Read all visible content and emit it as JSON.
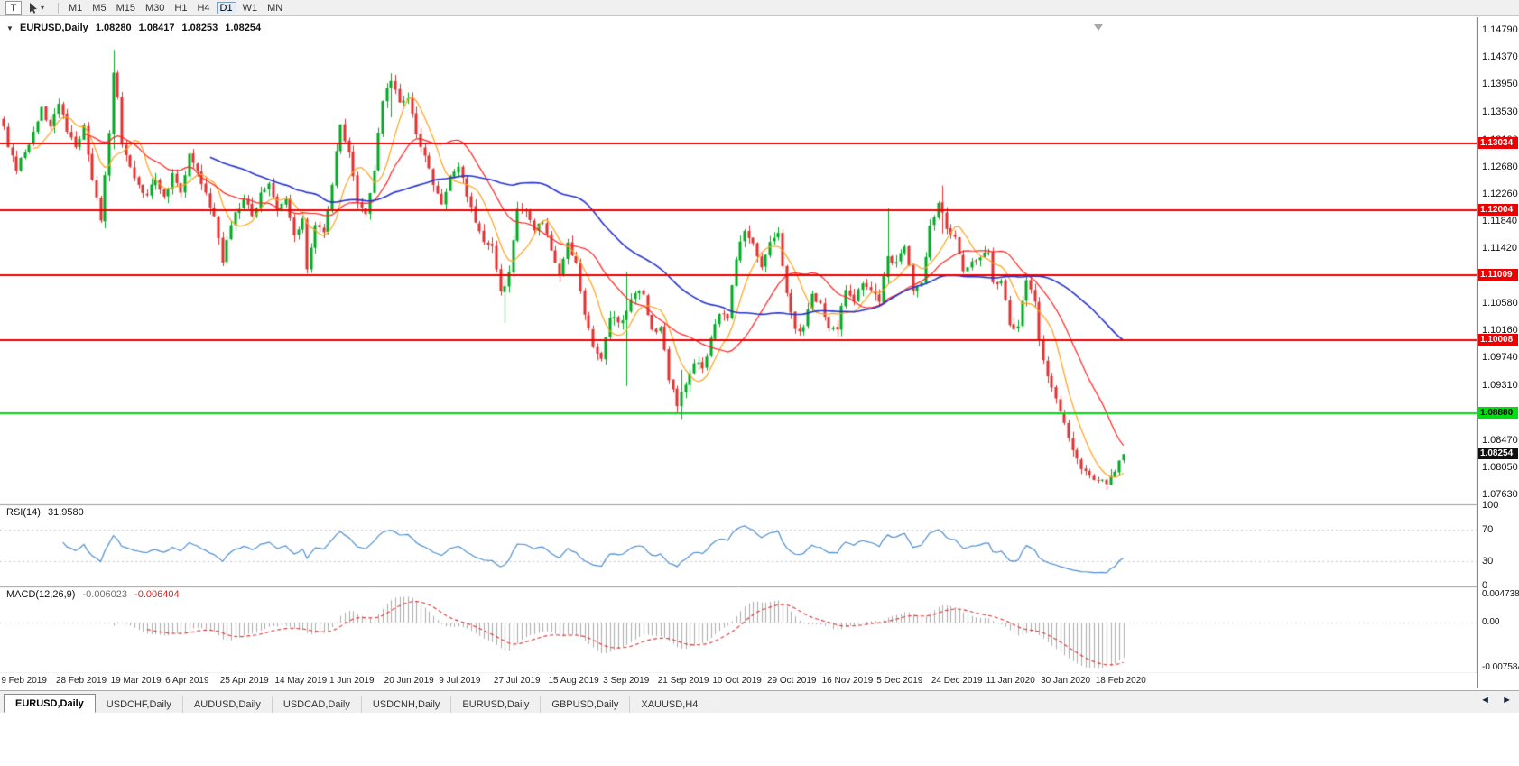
{
  "toolbar": {
    "text_tool_label": "T",
    "timeframes": [
      "M1",
      "M5",
      "M15",
      "M30",
      "H1",
      "H4",
      "D1",
      "W1",
      "MN"
    ],
    "active_timeframe": "D1"
  },
  "icons": {
    "collapse": "▼",
    "dropdown": "▾",
    "tab_scroll_left": "◄",
    "tab_scroll_right": "►"
  },
  "chart": {
    "symbol_info": {
      "symbol": "EURUSD,Daily",
      "open": "1.08280",
      "high": "1.08417",
      "low": "1.08253",
      "close": "1.08254"
    },
    "current_price_flag": {
      "label": "1.08254",
      "price": 1.08254,
      "bg": "#101010",
      "text_color": "#ffffff"
    },
    "rsi_panel": {
      "name": "RSI(14)",
      "value": "31.9580",
      "levels": [
        "100",
        "70",
        "30",
        "0"
      ],
      "line_color": "#4f8fd0"
    },
    "macd_panel": {
      "name": "MACD(12,26,9)",
      "value": "-0.006023",
      "signal_value": "-0.006404",
      "hist_color": "#ababab",
      "signal_color": "#e03131"
    }
  },
  "tabs": [
    {
      "label": "EURUSD,Daily",
      "active": true
    },
    {
      "label": "USDCHF,Daily",
      "active": false
    },
    {
      "label": "AUDUSD,Daily",
      "active": false
    },
    {
      "label": "USDCAD,Daily",
      "active": false
    },
    {
      "label": "USDCNH,Daily",
      "active": false
    },
    {
      "label": "EURUSD,Daily",
      "active": false
    },
    {
      "label": "GBPUSD,Daily",
      "active": false
    },
    {
      "label": "XAUUSD,H4",
      "active": false
    }
  ],
  "chart_data": {
    "type": "candlestick",
    "symbol": "EURUSD",
    "timeframe": "Daily",
    "current_bar": {
      "open": 1.0828,
      "high": 1.08417,
      "low": 1.08253,
      "close": 1.08254
    },
    "bars_total": 267,
    "y_range": [
      1.0749,
      1.14985
    ],
    "y_axis_ticks": [
      "1.14790",
      "1.14370",
      "1.13950",
      "1.13530",
      "1.13100",
      "1.12680",
      "1.12260",
      "1.11840",
      "1.11420",
      "1.11000",
      "1.10580",
      "1.10160",
      "1.09740",
      "1.09310",
      "1.08890",
      "1.08470",
      "1.08050",
      "1.07630"
    ],
    "x_labels": [
      "9 Feb 2019",
      "28 Feb 2019",
      "19 Mar 2019",
      "6 Apr 2019",
      "25 Apr 2019",
      "14 May 2019",
      "1 Jun 2019",
      "20 Jun 2019",
      "9 Jul 2019",
      "27 Jul 2019",
      "15 Aug 2019",
      "3 Sep 2019",
      "21 Sep 2019",
      "10 Oct 2019",
      "29 Oct 2019",
      "16 Nov 2019",
      "5 Dec 2019",
      "24 Dec 2019",
      "11 Jan 2020",
      "30 Jan 2020",
      "18 Feb 2020"
    ],
    "x_label_bars": [
      0,
      13,
      26,
      39,
      52,
      65,
      78,
      91,
      104,
      117,
      130,
      143,
      156,
      169,
      182,
      195,
      208,
      221,
      234,
      247,
      260
    ],
    "horizontal_lines": [
      {
        "price": 1.13034,
        "label": "1.13034",
        "color": "#ee0000",
        "text_color": "#ffffff",
        "role": "resistance"
      },
      {
        "price": 1.12004,
        "label": "1.12004",
        "color": "#ee0000",
        "text_color": "#ffffff",
        "role": "resistance"
      },
      {
        "price": 1.11009,
        "label": "1.11009",
        "color": "#ee0000",
        "text_color": "#ffffff",
        "role": "resistance"
      },
      {
        "price": 1.10008,
        "label": "1.10008",
        "color": "#ee0000",
        "text_color": "#ffffff",
        "role": "resistance"
      },
      {
        "price": 1.0888,
        "label": "1.08880",
        "color": "#00dd11",
        "text_color": "#000000",
        "role": "support"
      }
    ],
    "candle_colors": {
      "up": "#00aa22",
      "down": "#e03131"
    },
    "moving_averages": [
      {
        "type": "SMA",
        "period": 8,
        "color": "#ffa11a"
      },
      {
        "type": "SMA",
        "period": 20,
        "color": "#ff2222"
      },
      {
        "type": "SMA",
        "period": 50,
        "color": "#2633cc"
      }
    ],
    "indicators": {
      "rsi": {
        "period": 14,
        "current": 31.958,
        "levels": [
          70,
          30
        ]
      },
      "macd": {
        "fast": 12,
        "slow": 26,
        "signal": 9,
        "value": -0.006023,
        "signal_value": -0.006404
      }
    },
    "macd_axis": [
      "0.004738",
      "0.00",
      "-0.007584"
    ],
    "close_path_anchors": [
      [
        0,
        1.133
      ],
      [
        1,
        1.1298
      ],
      [
        3,
        1.1262
      ],
      [
        5,
        1.129
      ],
      [
        7,
        1.1322
      ],
      [
        9,
        1.136
      ],
      [
        11,
        1.133
      ],
      [
        13,
        1.1365
      ],
      [
        15,
        1.1322
      ],
      [
        17,
        1.1298
      ],
      [
        19,
        1.1332
      ],
      [
        21,
        1.1248
      ],
      [
        23,
        1.1185
      ],
      [
        25,
        1.132
      ],
      [
        26,
        1.1413
      ],
      [
        27,
        1.1375
      ],
      [
        28,
        1.1302
      ],
      [
        30,
        1.1268
      ],
      [
        32,
        1.124
      ],
      [
        34,
        1.1224
      ],
      [
        36,
        1.1248
      ],
      [
        38,
        1.1222
      ],
      [
        40,
        1.1258
      ],
      [
        42,
        1.1228
      ],
      [
        44,
        1.1288
      ],
      [
        46,
        1.1262
      ],
      [
        48,
        1.1228
      ],
      [
        50,
        1.1192
      ],
      [
        52,
        1.112
      ],
      [
        53,
        1.1155
      ],
      [
        55,
        1.1198
      ],
      [
        57,
        1.1218
      ],
      [
        59,
        1.1192
      ],
      [
        61,
        1.1228
      ],
      [
        63,
        1.1242
      ],
      [
        65,
        1.1202
      ],
      [
        67,
        1.1218
      ],
      [
        69,
        1.1162
      ],
      [
        71,
        1.1188
      ],
      [
        72,
        1.111
      ],
      [
        74,
        1.1178
      ],
      [
        76,
        1.1167
      ],
      [
        78,
        1.124
      ],
      [
        80,
        1.1333
      ],
      [
        82,
        1.129
      ],
      [
        84,
        1.1212
      ],
      [
        86,
        1.1195
      ],
      [
        88,
        1.1262
      ],
      [
        90,
        1.1369
      ],
      [
        92,
        1.14
      ],
      [
        94,
        1.1367
      ],
      [
        96,
        1.1373
      ],
      [
        98,
        1.1318
      ],
      [
        100,
        1.1285
      ],
      [
        102,
        1.124
      ],
      [
        104,
        1.121
      ],
      [
        106,
        1.1254
      ],
      [
        108,
        1.1268
      ],
      [
        110,
        1.1222
      ],
      [
        112,
        1.1182
      ],
      [
        114,
        1.1152
      ],
      [
        116,
        1.1146
      ],
      [
        118,
        1.1076
      ],
      [
        119,
        1.1084
      ],
      [
        120,
        1.1106
      ],
      [
        122,
        1.1203
      ],
      [
        124,
        1.1199
      ],
      [
        126,
        1.117
      ],
      [
        128,
        1.1182
      ],
      [
        130,
        1.1139
      ],
      [
        132,
        1.1101
      ],
      [
        134,
        1.1151
      ],
      [
        136,
        1.112
      ],
      [
        138,
        1.104
      ],
      [
        140,
        1.099
      ],
      [
        142,
        1.0972
      ],
      [
        144,
        1.1035
      ],
      [
        146,
        1.1028
      ],
      [
        148,
        1.1046
      ],
      [
        150,
        1.1073
      ],
      [
        152,
        1.1071
      ],
      [
        154,
        1.1017
      ],
      [
        156,
        1.1021
      ],
      [
        158,
        1.0939
      ],
      [
        160,
        1.0899
      ],
      [
        162,
        1.0932
      ],
      [
        164,
        1.0965
      ],
      [
        166,
        1.0957
      ],
      [
        168,
        1.1004
      ],
      [
        170,
        1.1041
      ],
      [
        172,
        1.1034
      ],
      [
        174,
        1.1125
      ],
      [
        176,
        1.1169
      ],
      [
        178,
        1.115
      ],
      [
        180,
        1.1113
      ],
      [
        182,
        1.1152
      ],
      [
        184,
        1.1166
      ],
      [
        186,
        1.1073
      ],
      [
        188,
        1.1018
      ],
      [
        190,
        1.1021
      ],
      [
        192,
        1.1072
      ],
      [
        194,
        1.1058
      ],
      [
        196,
        1.1019
      ],
      [
        198,
        1.1017
      ],
      [
        200,
        1.1078
      ],
      [
        202,
        1.106
      ],
      [
        204,
        1.1088
      ],
      [
        206,
        1.1078
      ],
      [
        208,
        1.106
      ],
      [
        210,
        1.113
      ],
      [
        212,
        1.1121
      ],
      [
        214,
        1.1145
      ],
      [
        216,
        1.1077
      ],
      [
        218,
        1.1089
      ],
      [
        220,
        1.1177
      ],
      [
        222,
        1.1212
      ],
      [
        224,
        1.1172
      ],
      [
        226,
        1.116
      ],
      [
        228,
        1.1107
      ],
      [
        230,
        1.1122
      ],
      [
        232,
        1.1128
      ],
      [
        234,
        1.1136
      ],
      [
        235,
        1.109
      ],
      [
        237,
        1.1092
      ],
      [
        239,
        1.1024
      ],
      [
        241,
        1.1022
      ],
      [
        243,
        1.1093
      ],
      [
        245,
        1.106
      ],
      [
        246,
        1.1
      ],
      [
        248,
        1.0945
      ],
      [
        250,
        1.0911
      ],
      [
        252,
        1.0873
      ],
      [
        254,
        1.0831
      ],
      [
        256,
        1.0802
      ],
      [
        258,
        1.0792
      ],
      [
        260,
        1.0785
      ],
      [
        262,
        1.0779
      ],
      [
        264,
        1.0798
      ],
      [
        265,
        1.0815
      ],
      [
        266,
        1.0825
      ]
    ],
    "spike_bars": [
      [
        26,
        1.1448,
        1.1295
      ],
      [
        92,
        1.1412,
        1.1344
      ],
      [
        119,
        1.1094,
        1.1027
      ],
      [
        148,
        1.1106,
        1.093
      ],
      [
        161,
        1.0955,
        1.0879
      ],
      [
        210,
        1.1204,
        1.1088
      ],
      [
        223,
        1.1239,
        1.1165
      ],
      [
        263,
        1.08,
        1.0778
      ]
    ]
  }
}
